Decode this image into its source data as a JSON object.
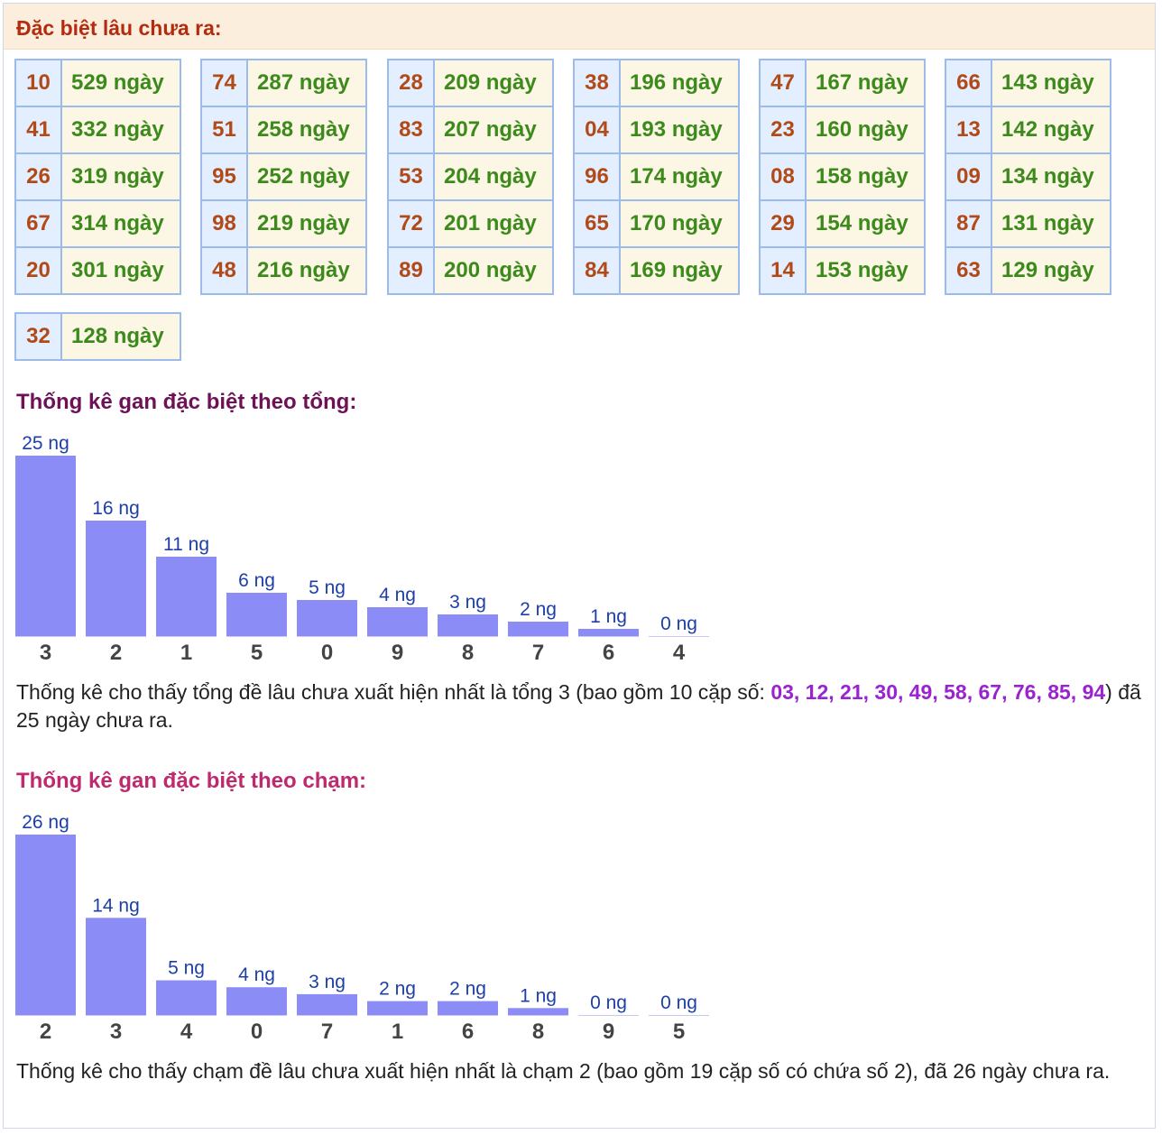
{
  "header": {
    "title": "Đặc biệt lâu chưa ra:"
  },
  "gan_tables": [
    [
      {
        "num": "10",
        "days": "529 ngày"
      },
      {
        "num": "41",
        "days": "332 ngày"
      },
      {
        "num": "26",
        "days": "319 ngày"
      },
      {
        "num": "67",
        "days": "314 ngày"
      },
      {
        "num": "20",
        "days": "301 ngày"
      }
    ],
    [
      {
        "num": "74",
        "days": "287 ngày"
      },
      {
        "num": "51",
        "days": "258 ngày"
      },
      {
        "num": "95",
        "days": "252 ngày"
      },
      {
        "num": "98",
        "days": "219 ngày"
      },
      {
        "num": "48",
        "days": "216 ngày"
      }
    ],
    [
      {
        "num": "28",
        "days": "209 ngày"
      },
      {
        "num": "83",
        "days": "207 ngày"
      },
      {
        "num": "53",
        "days": "204 ngày"
      },
      {
        "num": "72",
        "days": "201 ngày"
      },
      {
        "num": "89",
        "days": "200 ngày"
      }
    ],
    [
      {
        "num": "38",
        "days": "196 ngày"
      },
      {
        "num": "04",
        "days": "193 ngày"
      },
      {
        "num": "96",
        "days": "174 ngày"
      },
      {
        "num": "65",
        "days": "170 ngày"
      },
      {
        "num": "84",
        "days": "169 ngày"
      }
    ],
    [
      {
        "num": "47",
        "days": "167 ngày"
      },
      {
        "num": "23",
        "days": "160 ngày"
      },
      {
        "num": "08",
        "days": "158 ngày"
      },
      {
        "num": "29",
        "days": "154 ngày"
      },
      {
        "num": "14",
        "days": "153 ngày"
      }
    ],
    [
      {
        "num": "66",
        "days": "143 ngày"
      },
      {
        "num": "13",
        "days": "142 ngày"
      },
      {
        "num": "09",
        "days": "134 ngày"
      },
      {
        "num": "87",
        "days": "131 ngày"
      },
      {
        "num": "63",
        "days": "129 ngày"
      }
    ],
    [
      {
        "num": "32",
        "days": "128 ngày"
      }
    ]
  ],
  "colors": {
    "bar": "#8c8cf6",
    "bar_label": "#1d3fa8",
    "tick": "#444444",
    "tong_title": "#6e1257",
    "cham_title": "#bf2a6e"
  },
  "chart_data": [
    {
      "type": "bar",
      "title": "Thống kê gan đặc biệt theo tổng:",
      "categories": [
        "3",
        "2",
        "1",
        "5",
        "0",
        "9",
        "8",
        "7",
        "6",
        "4"
      ],
      "values": [
        25,
        16,
        11,
        6,
        5,
        4,
        3,
        2,
        1,
        0
      ],
      "data_labels": [
        "25 ng",
        "16 ng",
        "11 ng",
        "6 ng",
        "5 ng",
        "4 ng",
        "3 ng",
        "2 ng",
        "1 ng",
        "0 ng"
      ],
      "xlabel": "",
      "ylabel": "",
      "ylim": [
        0,
        25
      ],
      "grid": false
    },
    {
      "type": "bar",
      "title": "Thống kê gan đặc biệt theo chạm:",
      "categories": [
        "2",
        "3",
        "4",
        "0",
        "7",
        "1",
        "6",
        "8",
        "9",
        "5"
      ],
      "values": [
        26,
        14,
        5,
        4,
        3,
        2,
        2,
        1,
        0,
        0
      ],
      "data_labels": [
        "26 ng",
        "14 ng",
        "5 ng",
        "4 ng",
        "3 ng",
        "2 ng",
        "2 ng",
        "1 ng",
        "0 ng",
        "0 ng"
      ],
      "xlabel": "",
      "ylabel": "",
      "ylim": [
        0,
        26
      ],
      "grid": false
    }
  ],
  "tong_text": {
    "before": "Thống kê cho thấy tổng đề lâu chưa xuất hiện nhất là tổng 3 (bao gồm 10 cặp số: ",
    "pairs": "03, 12, 21, 30, 49, 58, 67, 76, 85, 94",
    "after": ") đã 25 ngày chưa ra."
  },
  "cham_text": "Thống kê cho thấy chạm đề lâu chưa xuất hiện nhất là chạm 2 (bao gồm 19 cặp số có chứa số 2), đã 26 ngày chưa ra."
}
